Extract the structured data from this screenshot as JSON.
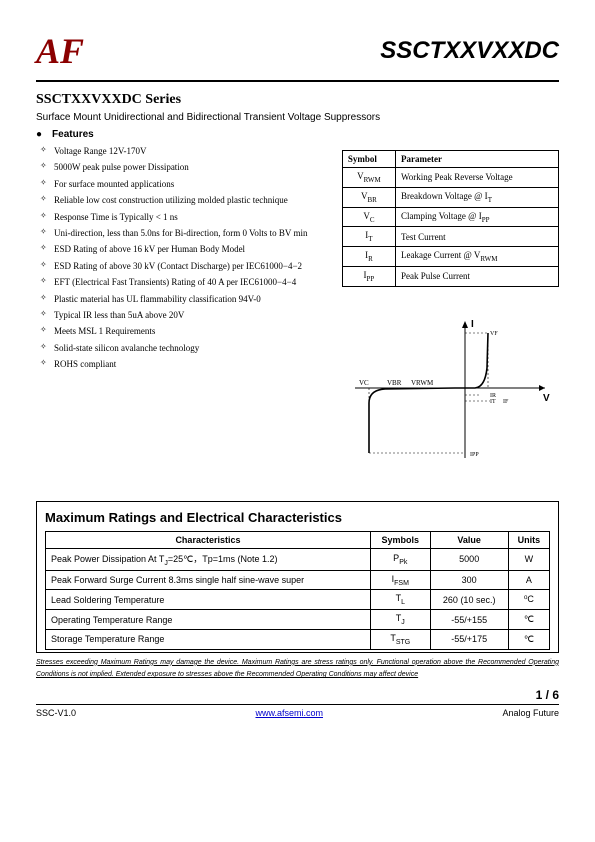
{
  "header": {
    "logo": "AF",
    "part_number": "SSCTXXVXXDC"
  },
  "series_title": "SSCTXXVXXDC   Series",
  "subtitle": "Surface Mount Unidirectional and Bidirectional Transient Voltage Suppressors",
  "features_label": "Features",
  "features": [
    "Voltage Range 12V-170V",
    "5000W peak pulse power Dissipation",
    "For surface mounted applications",
    "Reliable low cost construction utilizing molded plastic technique",
    "Response Time is Typically < 1 ns",
    "Uni-direction, less than 5.0ns for Bi-direction, form 0 Volts to BV min",
    "ESD Rating of above 16 kV per Human Body Model",
    "ESD Rating of above 30 kV (Contact Discharge) per IEC61000−4−2",
    "EFT (Electrical Fast Transients) Rating of 40 A per IEC61000−4−4",
    "Plastic material has UL flammability classification 94V-0",
    "Typical IR less than 5uA above 20V",
    "Meets MSL 1 Requirements",
    "Solid-state silicon avalanche technology",
    "ROHS compliant"
  ],
  "symbol_table": {
    "headers": [
      "Symbol",
      "Parameter"
    ],
    "rows": [
      {
        "sym": "V",
        "sub": "RWM",
        "param": "Working Peak Reverse Voltage"
      },
      {
        "sym": "V",
        "sub": "BR",
        "param": "Breakdown Voltage @ I",
        "param_sub": "T"
      },
      {
        "sym": "V",
        "sub": "C",
        "param": "Clamping Voltage @ I",
        "param_sub": "PP"
      },
      {
        "sym": "I",
        "sub": "T",
        "param": "Test Current"
      },
      {
        "sym": "I",
        "sub": "R",
        "param": "Leakage Current @ V",
        "param_sub": "RWM"
      },
      {
        "sym": "I",
        "sub": "PP",
        "param": "Peak Pulse Current"
      }
    ]
  },
  "graph": {
    "y_label": "I",
    "x_label": "V",
    "annotations": [
      "VF",
      "IR",
      "IT",
      "IF",
      "IPP",
      "VC",
      "VBR",
      "VRWM"
    ],
    "line_color": "#000",
    "dash_color": "#000"
  },
  "ratings": {
    "title": "Maximum Ratings and Electrical Characteristics",
    "headers": [
      "Characteristics",
      "Symbols",
      "Value",
      "Units"
    ],
    "rows": [
      {
        "char": "Peak Power Dissipation At T",
        "char_sub": "J",
        "char_tail": "=25℃，Tp=1ms (Note 1.2)",
        "sym": "P",
        "sub": "Pk",
        "value": "5000",
        "units": "W"
      },
      {
        "char": "Peak Forward Surge Current 8.3ms single half sine-wave super",
        "sym": "I",
        "sub": "FSM",
        "value": "300",
        "units": "A"
      },
      {
        "char": "Lead Soldering Temperature",
        "sym": "T",
        "sub": "L",
        "value": "260 (10 sec.)",
        "units": "⁰C"
      },
      {
        "char": "Operating Temperature Range",
        "sym": "T",
        "sub": "J",
        "value": "-55/+155",
        "units": "℃"
      },
      {
        "char": "Storage Temperature Range",
        "sym": "T",
        "sub": "STG",
        "value": "-55/+175",
        "units": "℃"
      }
    ]
  },
  "footnote": "Stresses exceeding Maximum Ratings may damage the device. Maximum Ratings are stress ratings only. Functional operation above the Recommended Operating Conditions is not implied. Extended exposure to stresses above the Recommended Operating Conditions may affect device",
  "page_num": "1 / 6",
  "footer": {
    "left": "SSC-V1.0",
    "link": "www.afsemi.com",
    "right": "Analog Future"
  }
}
